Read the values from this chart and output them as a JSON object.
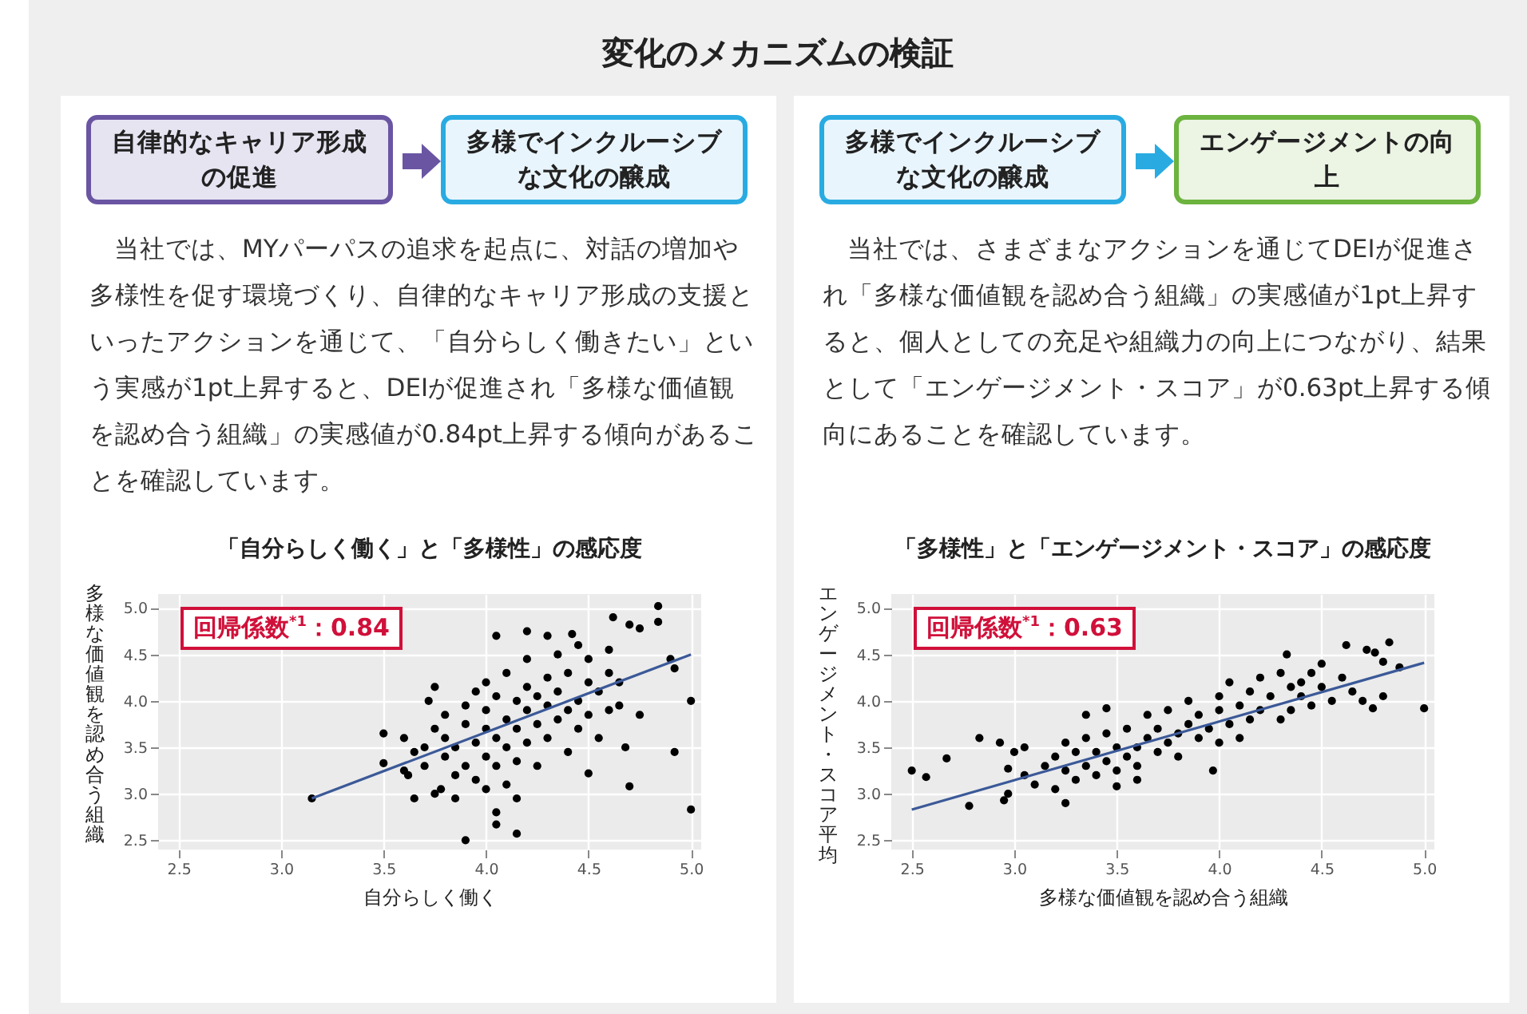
{
  "chart_data": [
    {
      "type": "other",
      "title": "変化のメカニズムの検証"
    },
    {
      "type": "scatter",
      "title": "「自分らしく働く」と「多様性」の感応度",
      "xlabel": "自分らしく働く",
      "ylabel": "多様な価値観を認め合う組織",
      "annotations": [
        "自律的なキャリア形成の促進",
        "多様でインクルーシブな文化の醸成",
        "当社では、MYパーパスの追求を起点に、対話の増加や多様性を促す環境づくり、自律的なキャリア形成の支援といったアクションを通じて、「自分らしく働きたい」という実感が1pt上昇すると、DEIが促進され「多様な価値観を認め合う組織」の実感値が0.84pt上昇する傾向があることを確認しています。",
        "回帰係数$^{*1}$：0.84"
      ],
      "xlim": [
        2.4,
        5.05
      ],
      "ylim": [
        2.4,
        5.15
      ],
      "xticks": [
        {
          "value": 2.5,
          "label": "2.5"
        },
        {
          "value": 3,
          "label": "3.0"
        },
        {
          "value": 3.5,
          "label": "3.5"
        },
        {
          "value": 4,
          "label": "4.0"
        },
        {
          "value": 4.5,
          "label": "4.5"
        },
        {
          "value": 5,
          "label": "5.0"
        }
      ],
      "yticks": [
        {
          "value": 2.5,
          "label": "2.5"
        },
        {
          "value": 3,
          "label": "3.0"
        },
        {
          "value": 3.5,
          "label": "3.5"
        },
        {
          "value": 4,
          "label": "4.0"
        },
        {
          "value": 4.5,
          "label": "4.5"
        },
        {
          "value": 5,
          "label": "5.0"
        }
      ],
      "grid": true,
      "series": [
        {
          "type": "scatter",
          "marker": "circle",
          "color": "#000000",
          "x": [
            3.15,
            3.5,
            3.5,
            3.6,
            3.62,
            3.65,
            3.75,
            3.72,
            3.78,
            3.9,
            3.85,
            4.05,
            4.05,
            4.15,
            4.15,
            4.05,
            4.2,
            4.3,
            4.42,
            4.5,
            4.62,
            4.68,
            4.7,
            4.7,
            4.75,
            4.84,
            4.84,
            4.9,
            4.92,
            4.92,
            5.0,
            5.0,
            4.75,
            4.65,
            3.7,
            3.7,
            3.75,
            3.8,
            3.8,
            3.8,
            3.85,
            3.85,
            3.9,
            3.9,
            3.9,
            3.95,
            3.95,
            3.95,
            4.0,
            4.0,
            4.0,
            4.0,
            4.05,
            4.05,
            4.05,
            4.1,
            4.1,
            4.1,
            4.1,
            4.15,
            4.15,
            4.15,
            4.2,
            4.2,
            4.2,
            4.2,
            4.25,
            4.25,
            4.25,
            4.3,
            4.3,
            4.3,
            4.35,
            4.35,
            4.35,
            4.4,
            4.4,
            4.4,
            4.45,
            4.45,
            4.45,
            4.5,
            4.5,
            4.5,
            4.55,
            4.55,
            4.6,
            4.6,
            4.6,
            4.65,
            3.65,
            3.6,
            4.0,
            3.75
          ],
          "values": [
            2.95,
            3.65,
            3.33,
            3.6,
            3.2,
            2.95,
            4.15,
            4.0,
            3.05,
            2.5,
            2.95,
            2.8,
            2.67,
            2.57,
            2.95,
            4.7,
            4.75,
            4.7,
            4.72,
            3.22,
            4.9,
            3.5,
            3.08,
            4.82,
            4.78,
            5.02,
            4.85,
            4.45,
            4.35,
            3.45,
            4.0,
            2.83,
            3.85,
            3.95,
            3.5,
            3.3,
            3.7,
            3.4,
            3.6,
            3.85,
            3.2,
            3.5,
            3.75,
            3.3,
            3.95,
            3.55,
            3.15,
            4.1,
            3.4,
            3.7,
            3.9,
            4.2,
            3.3,
            3.6,
            4.05,
            3.5,
            3.8,
            4.3,
            3.1,
            3.7,
            4.0,
            3.35,
            3.9,
            4.15,
            3.55,
            4.45,
            3.75,
            4.05,
            3.3,
            3.95,
            4.25,
            3.6,
            4.1,
            3.8,
            4.5,
            3.9,
            4.3,
            3.45,
            4.0,
            4.6,
            3.7,
            4.2,
            3.85,
            4.45,
            4.1,
            3.6,
            4.3,
            3.9,
            4.55,
            4.2,
            3.45,
            3.25,
            3.05,
            3.0
          ]
        },
        {
          "type": "line",
          "color": "#3b5998",
          "x": [
            3.15,
            5.0
          ],
          "values": [
            2.95,
            4.5
          ]
        }
      ]
    },
    {
      "type": "scatter",
      "title": "「多様性」と「エンゲージメント・スコア」の感応度",
      "xlabel": "多様な価値観を認め合う組織",
      "ylabel": "エンゲージメント・スコア平均",
      "annotations": [
        "多様でインクルーシブな文化の醸成",
        "エンゲージメントの向上",
        "当社では、さまざまなアクションを通じてDEIが促進され「多様な価値観を認め合う組織」の実感値が1pt上昇すると、個人としての充足や組織力の向上につながり、結果として「エンゲージメント・スコア」が0.63pt上昇する傾向にあることを確認しています。",
        "回帰係数$^{*1}$：0.63"
      ],
      "xlim": [
        2.4,
        5.05
      ],
      "ylim": [
        2.4,
        5.15
      ],
      "xticks": [
        {
          "value": 2.5,
          "label": "2.5"
        },
        {
          "value": 3,
          "label": "3.0"
        },
        {
          "value": 3.5,
          "label": "3.5"
        },
        {
          "value": 4,
          "label": "4.0"
        },
        {
          "value": 4.5,
          "label": "4.5"
        },
        {
          "value": 5,
          "label": "5.0"
        }
      ],
      "yticks": [
        {
          "value": 2.5,
          "label": "2.5"
        },
        {
          "value": 3,
          "label": "3.0"
        },
        {
          "value": 3.5,
          "label": "3.5"
        },
        {
          "value": 4,
          "label": "4.0"
        },
        {
          "value": 4.5,
          "label": "4.5"
        },
        {
          "value": 5,
          "label": "5.0"
        }
      ],
      "grid": true,
      "series": [
        {
          "type": "scatter",
          "marker": "circle",
          "color": "#000000",
          "x": [
            2.5,
            2.57,
            2.67,
            2.78,
            2.83,
            2.93,
            2.95,
            2.97,
            2.97,
            3.0,
            3.05,
            3.25,
            3.5,
            3.97,
            3.45,
            3.35,
            4.33,
            4.62,
            4.72,
            4.76,
            4.83,
            4.8,
            4.88,
            5.0,
            4.8,
            4.75,
            4.7,
            3.05,
            3.1,
            3.15,
            3.2,
            3.2,
            3.25,
            3.3,
            3.3,
            3.35,
            3.35,
            3.4,
            3.4,
            3.45,
            3.45,
            3.5,
            3.5,
            3.55,
            3.55,
            3.6,
            3.6,
            3.65,
            3.65,
            3.7,
            3.7,
            3.75,
            3.75,
            3.8,
            3.8,
            3.85,
            3.85,
            3.9,
            3.9,
            3.95,
            4.0,
            4.0,
            4.05,
            4.05,
            4.1,
            4.1,
            4.15,
            4.15,
            4.2,
            4.2,
            4.25,
            4.3,
            4.3,
            4.35,
            4.35,
            4.4,
            4.4,
            4.45,
            4.45,
            4.5,
            4.5,
            4.55,
            4.6,
            4.65,
            3.25,
            3.6,
            4.0
          ],
          "values": [
            3.25,
            3.18,
            3.38,
            2.87,
            3.6,
            3.55,
            2.93,
            3.0,
            3.27,
            3.45,
            3.5,
            2.9,
            3.08,
            3.25,
            3.92,
            3.85,
            4.5,
            4.6,
            4.55,
            4.52,
            4.63,
            4.42,
            4.36,
            3.92,
            4.05,
            3.92,
            4.0,
            3.2,
            3.1,
            3.3,
            3.05,
            3.4,
            3.25,
            3.15,
            3.45,
            3.3,
            3.6,
            3.2,
            3.45,
            3.35,
            3.65,
            3.5,
            3.25,
            3.4,
            3.7,
            3.5,
            3.3,
            3.6,
            3.85,
            3.45,
            3.7,
            3.55,
            3.9,
            3.65,
            3.4,
            3.75,
            4.0,
            3.6,
            3.85,
            3.7,
            3.9,
            4.05,
            3.75,
            4.2,
            3.95,
            3.6,
            4.1,
            3.8,
            4.25,
            3.9,
            4.05,
            3.8,
            4.3,
            4.15,
            3.9,
            4.2,
            4.05,
            4.3,
            3.95,
            4.15,
            4.4,
            4.0,
            4.25,
            4.1,
            3.55,
            3.15,
            3.55
          ]
        },
        {
          "type": "line",
          "color": "#3b5998",
          "x": [
            2.5,
            5.0
          ],
          "values": [
            2.83,
            4.41
          ]
        }
      ]
    }
  ]
}
